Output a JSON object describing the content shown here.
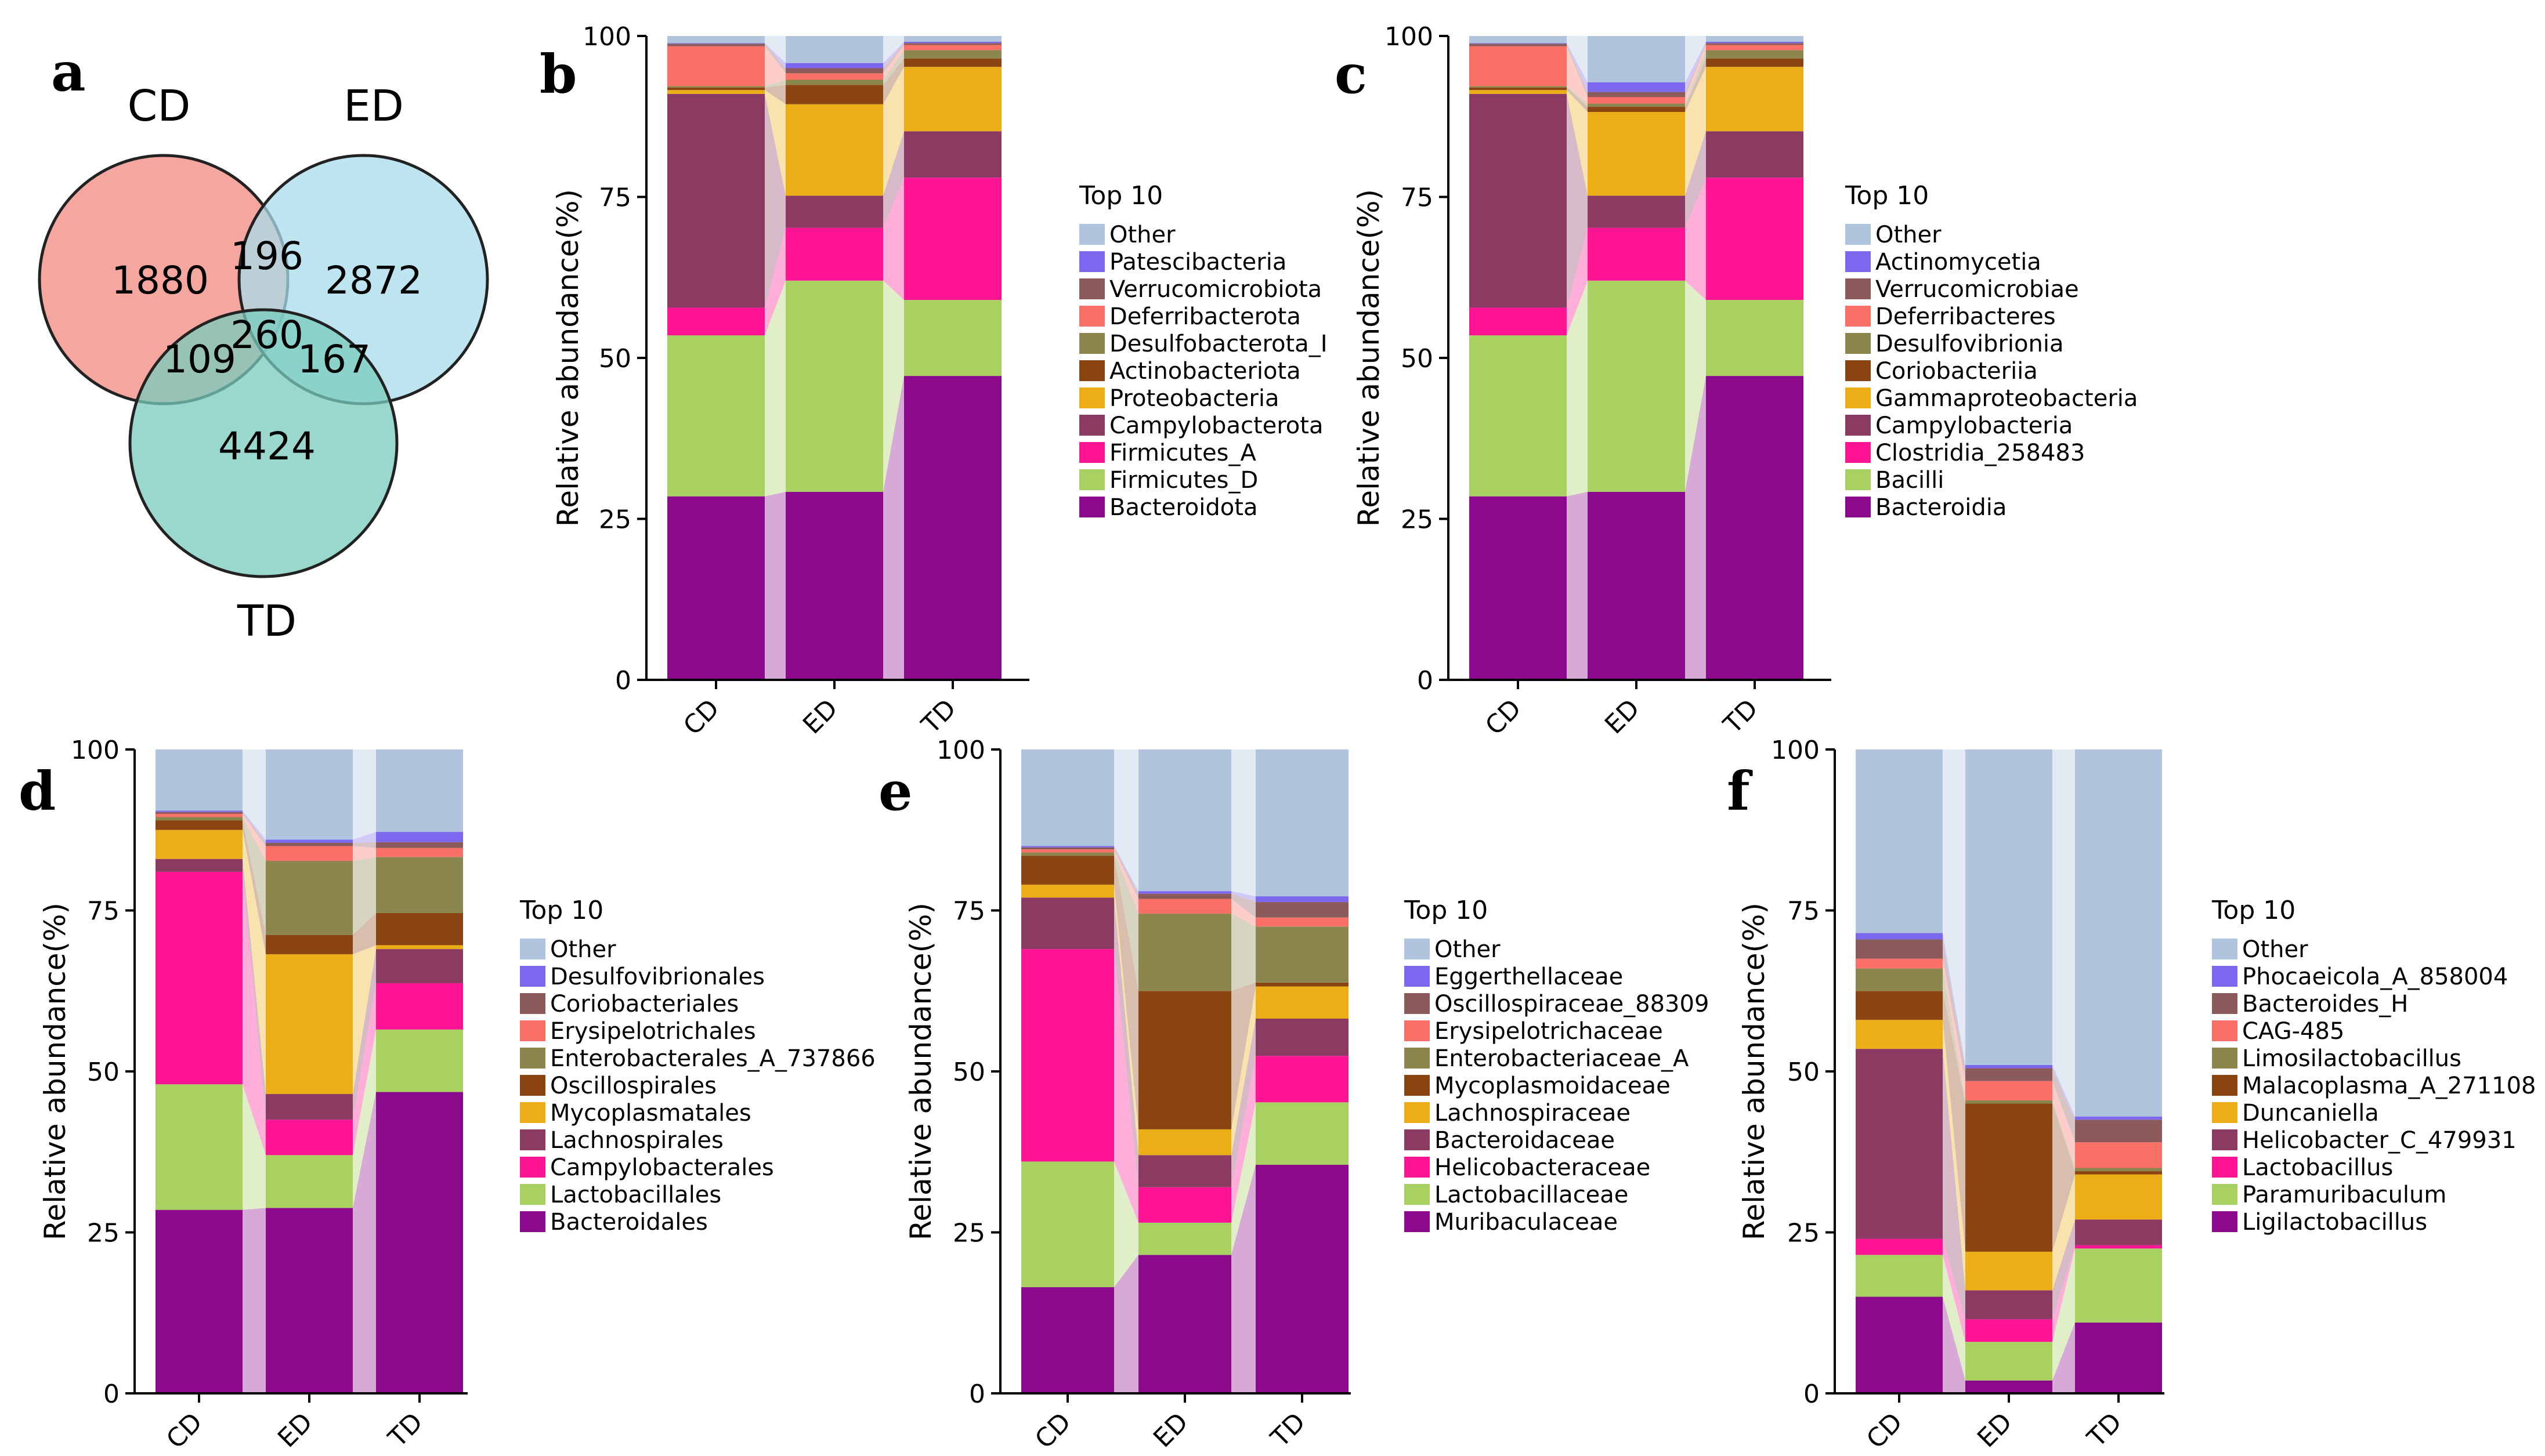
{
  "venn": {
    "letter": "a",
    "sets": [
      "CD",
      "ED",
      "TD"
    ],
    "colors": [
      "#f4a29a",
      "#a8dcea",
      "#78cbbd"
    ],
    "regions": {
      "CD_only": "1880",
      "ED_only": "2872",
      "TD_only": "4424",
      "CD_ED": "196",
      "CD_TD": "109",
      "ED_TD": "167",
      "CD_ED_TD": "260"
    }
  },
  "chart_data": [
    {
      "letter": "b",
      "type": "bar",
      "stacked": true,
      "categories": [
        "CD",
        "ED",
        "TD"
      ],
      "ylabel": "Relative abundance(%)",
      "ylim": [
        0,
        100
      ],
      "yticks": [
        0,
        25,
        50,
        75,
        100
      ],
      "legend_title": "Top 10",
      "series": [
        {
          "name": "Bacteroidota",
          "color": "#8b0a8b",
          "values": [
            28.5,
            29.2,
            47.2
          ]
        },
        {
          "name": "Firmicutes_D",
          "color": "#a8d162",
          "values": [
            25.0,
            32.8,
            11.8
          ]
        },
        {
          "name": "Firmicutes_A",
          "color": "#ff1493",
          "values": [
            4.3,
            8.2,
            19.0
          ]
        },
        {
          "name": "Campylobacterota",
          "color": "#8b3a62",
          "values": [
            33.2,
            5.0,
            7.2
          ]
        },
        {
          "name": "Proteobacteria",
          "color": "#ecae16",
          "values": [
            0.6,
            14.2,
            10.0
          ]
        },
        {
          "name": "Actinobacteriota",
          "color": "#8b4513",
          "values": [
            0.4,
            3.0,
            1.3
          ]
        },
        {
          "name": "Desulfobacterota_I",
          "color": "#8b864e",
          "values": [
            0.2,
            0.8,
            1.3
          ]
        },
        {
          "name": "Deferribacterota",
          "color": "#fa7066",
          "values": [
            6.2,
            1.0,
            0.8
          ]
        },
        {
          "name": "Verrucomicrobiota",
          "color": "#8b5a5a",
          "values": [
            0.4,
            0.8,
            0.3
          ]
        },
        {
          "name": "Patescibacteria",
          "color": "#7b68ee",
          "values": [
            0.1,
            0.8,
            0.2
          ]
        },
        {
          "name": "Other",
          "color": "#b0c4de",
          "values": [
            1.1,
            4.2,
            0.9
          ]
        }
      ]
    },
    {
      "letter": "c",
      "type": "bar",
      "stacked": true,
      "categories": [
        "CD",
        "ED",
        "TD"
      ],
      "ylabel": "Relative abundance(%)",
      "ylim": [
        0,
        100
      ],
      "yticks": [
        0,
        25,
        50,
        75,
        100
      ],
      "legend_title": "Top 10",
      "series": [
        {
          "name": "Bacteroidia",
          "color": "#8b0a8b",
          "values": [
            28.5,
            29.2,
            47.2
          ]
        },
        {
          "name": "Bacilli",
          "color": "#a8d162",
          "values": [
            25.0,
            32.8,
            11.8
          ]
        },
        {
          "name": "Clostridia_258483",
          "color": "#ff1493",
          "values": [
            4.3,
            8.2,
            19.0
          ]
        },
        {
          "name": "Campylobacteria",
          "color": "#8b3a62",
          "values": [
            33.2,
            5.0,
            7.2
          ]
        },
        {
          "name": "Gammaproteobacteria",
          "color": "#ecae16",
          "values": [
            0.6,
            13.0,
            10.0
          ]
        },
        {
          "name": "Coriobacteriia",
          "color": "#8b4513",
          "values": [
            0.4,
            0.8,
            1.3
          ]
        },
        {
          "name": "Desulfovibrionia",
          "color": "#8b864e",
          "values": [
            0.2,
            0.5,
            1.3
          ]
        },
        {
          "name": "Deferribacteres",
          "color": "#fa7066",
          "values": [
            6.2,
            1.0,
            0.8
          ]
        },
        {
          "name": "Verrucomicrobiae",
          "color": "#8b5a5a",
          "values": [
            0.4,
            0.8,
            0.3
          ]
        },
        {
          "name": "Actinomycetia",
          "color": "#7b68ee",
          "values": [
            0.1,
            1.5,
            0.2
          ]
        },
        {
          "name": "Other",
          "color": "#b0c4de",
          "values": [
            1.1,
            7.2,
            0.9
          ]
        }
      ]
    },
    {
      "letter": "d",
      "type": "bar",
      "stacked": true,
      "categories": [
        "CD",
        "ED",
        "TD"
      ],
      "ylabel": "Relative abundance(%)",
      "ylim": [
        0,
        100
      ],
      "yticks": [
        0,
        25,
        50,
        75,
        100
      ],
      "legend_title": "Top 10",
      "series": [
        {
          "name": "Bacteroidales",
          "color": "#8b0a8b",
          "values": [
            28.5,
            28.8,
            46.8
          ]
        },
        {
          "name": "Lactobacillales",
          "color": "#a8d162",
          "values": [
            19.5,
            8.2,
            9.7
          ]
        },
        {
          "name": "Campylobacterales",
          "color": "#ff1493",
          "values": [
            33.0,
            5.5,
            7.2
          ]
        },
        {
          "name": "Lachnospirales",
          "color": "#8b3a62",
          "values": [
            2.0,
            4.0,
            5.3
          ]
        },
        {
          "name": "Mycoplasmatales",
          "color": "#ecae16",
          "values": [
            4.5,
            21.7,
            0.6
          ]
        },
        {
          "name": "Oscillospirales",
          "color": "#8b4513",
          "values": [
            1.5,
            3.0,
            5.0
          ]
        },
        {
          "name": "Enterobacterales_A_737866",
          "color": "#8b864e",
          "values": [
            0.5,
            11.5,
            8.7
          ]
        },
        {
          "name": "Erysipelotrichales",
          "color": "#fa7066",
          "values": [
            0.5,
            2.3,
            1.4
          ]
        },
        {
          "name": "Coriobacteriales",
          "color": "#8b5a5a",
          "values": [
            0.3,
            0.5,
            0.9
          ]
        },
        {
          "name": "Desulfovibrionales",
          "color": "#7b68ee",
          "values": [
            0.2,
            0.5,
            1.6
          ]
        },
        {
          "name": "Other",
          "color": "#b0c4de",
          "values": [
            9.5,
            14.0,
            12.8
          ]
        }
      ]
    },
    {
      "letter": "e",
      "type": "bar",
      "stacked": true,
      "categories": [
        "CD",
        "ED",
        "TD"
      ],
      "ylabel": "Relative abundance(%)",
      "ylim": [
        0,
        100
      ],
      "yticks": [
        0,
        25,
        50,
        75,
        100
      ],
      "legend_title": "Top 10",
      "series": [
        {
          "name": "Muribaculaceae",
          "color": "#8b0a8b",
          "values": [
            16.5,
            21.5,
            35.5
          ]
        },
        {
          "name": "Lactobacillaceae",
          "color": "#a8d162",
          "values": [
            19.5,
            5.0,
            9.7
          ]
        },
        {
          "name": "Helicobacteraceae",
          "color": "#ff1493",
          "values": [
            33.0,
            5.5,
            7.2
          ]
        },
        {
          "name": "Bacteroidaceae",
          "color": "#8b3a62",
          "values": [
            8.0,
            5.0,
            5.8
          ]
        },
        {
          "name": "Lachnospiraceae",
          "color": "#ecae16",
          "values": [
            2.0,
            4.0,
            5.0
          ]
        },
        {
          "name": "Mycoplasmoidaceae",
          "color": "#8b4513",
          "values": [
            4.5,
            21.5,
            0.6
          ]
        },
        {
          "name": "Enterobacteriaceae_A",
          "color": "#8b864e",
          "values": [
            0.5,
            12.0,
            8.7
          ]
        },
        {
          "name": "Erysipelotrichaceae",
          "color": "#fa7066",
          "values": [
            0.5,
            2.3,
            1.4
          ]
        },
        {
          "name": "Oscillospiraceae_88309",
          "color": "#8b5a5a",
          "values": [
            0.3,
            0.8,
            2.4
          ]
        },
        {
          "name": "Eggerthellaceae",
          "color": "#7b68ee",
          "values": [
            0.2,
            0.4,
            0.9
          ]
        },
        {
          "name": "Other",
          "color": "#b0c4de",
          "values": [
            15.0,
            22.0,
            22.8
          ]
        }
      ]
    },
    {
      "letter": "f",
      "type": "bar",
      "stacked": true,
      "categories": [
        "CD",
        "ED",
        "TD"
      ],
      "ylabel": "Relative abundance(%)",
      "ylim": [
        0,
        100
      ],
      "yticks": [
        0,
        25,
        50,
        75,
        100
      ],
      "legend_title": "Top 10",
      "series": [
        {
          "name": "Ligilactobacillus",
          "color": "#8b0a8b",
          "values": [
            15.0,
            2.0,
            11.0
          ]
        },
        {
          "name": "Paramuribaculum",
          "color": "#a8d162",
          "values": [
            6.5,
            6.0,
            11.5
          ]
        },
        {
          "name": "Lactobacillus",
          "color": "#ff1493",
          "values": [
            2.5,
            3.5,
            0.5
          ]
        },
        {
          "name": "Helicobacter_C_479931",
          "color": "#8b3a62",
          "values": [
            29.5,
            4.5,
            4.0
          ]
        },
        {
          "name": "Duncaniella",
          "color": "#ecae16",
          "values": [
            4.5,
            6.0,
            7.0
          ]
        },
        {
          "name": "Malacoplasma_A_271108",
          "color": "#8b4513",
          "values": [
            4.5,
            23.0,
            0.5
          ]
        },
        {
          "name": "Limosilactobacillus",
          "color": "#8b864e",
          "values": [
            3.5,
            0.5,
            0.5
          ]
        },
        {
          "name": "CAG-485",
          "color": "#fa7066",
          "values": [
            1.5,
            3.0,
            4.0
          ]
        },
        {
          "name": "Bacteroides_H",
          "color": "#8b5a5a",
          "values": [
            3.0,
            2.0,
            3.5
          ]
        },
        {
          "name": "Phocaeicola_A_858004",
          "color": "#7b68ee",
          "values": [
            1.0,
            0.5,
            0.5
          ]
        },
        {
          "name": "Other",
          "color": "#b0c4de",
          "values": [
            28.5,
            49.0,
            57.0
          ]
        }
      ]
    }
  ]
}
